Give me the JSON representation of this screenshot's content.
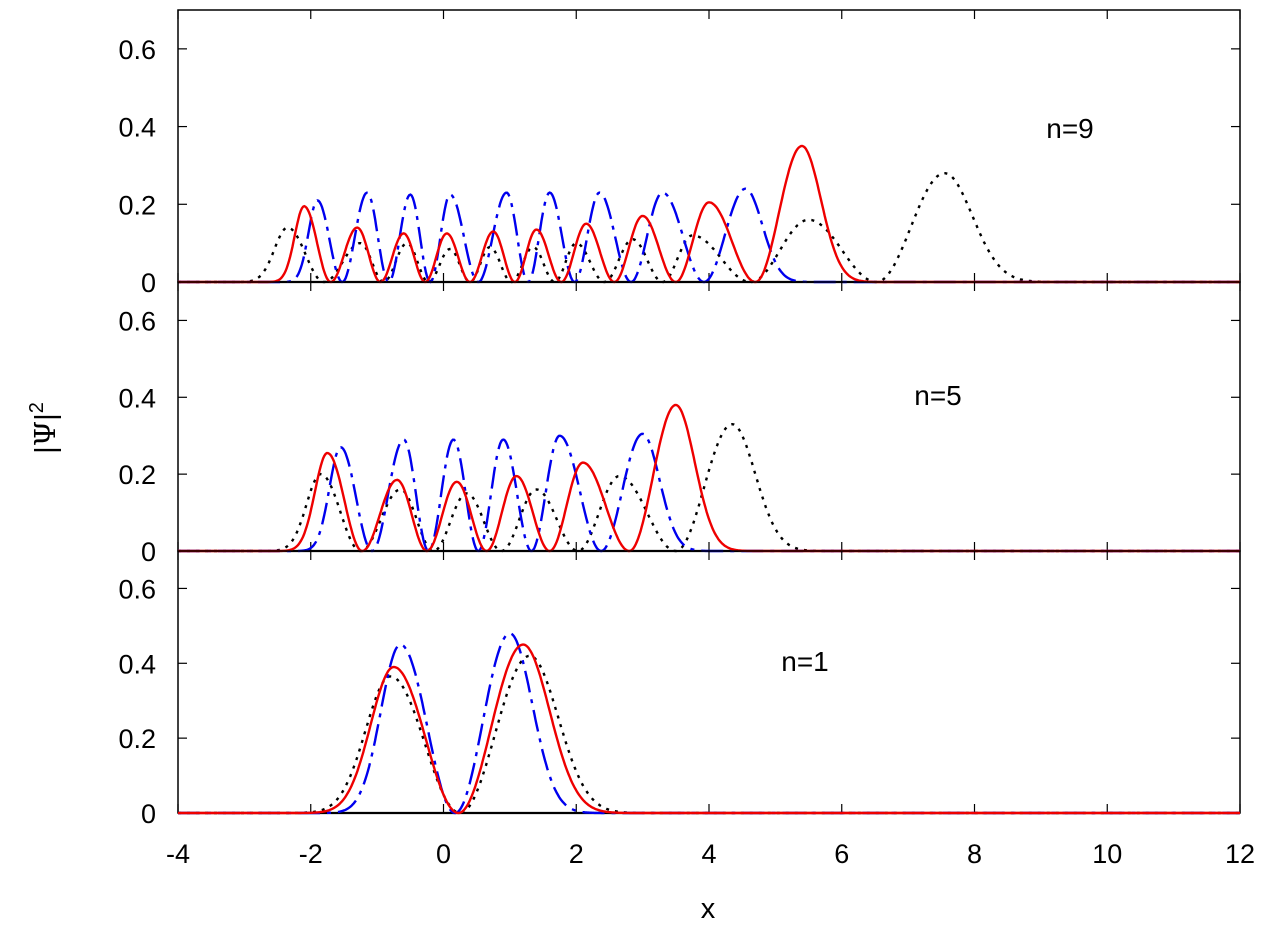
{
  "chart_data": {
    "type": "line",
    "xlabel": "x",
    "ylabel": {
      "prefix": "|",
      "symbol": "Ψ",
      "suffix": "|",
      "exponent": "2"
    },
    "xlim": [
      -4,
      12
    ],
    "x_ticks": [
      "-4",
      "-2",
      "0",
      "2",
      "4",
      "6",
      "8",
      "10",
      "12"
    ],
    "y_ticks": [
      "0",
      "0.2",
      "0.4",
      "0.6"
    ],
    "ylim": [
      0,
      0.7
    ],
    "colors": {
      "dotted": "#000000",
      "dashdot": "#0000ee",
      "solid": "#ee0000"
    },
    "panels": [
      {
        "label": "n=9",
        "series": [
          {
            "style": "dotted",
            "peaks": [
              {
                "x": -2.35,
                "h": 0.14
              },
              {
                "x": -1.25,
                "h": 0.1
              },
              {
                "x": -0.55,
                "h": 0.1
              },
              {
                "x": 0.1,
                "h": 0.085
              },
              {
                "x": 0.7,
                "h": 0.09
              },
              {
                "x": 1.35,
                "h": 0.09
              },
              {
                "x": 2.0,
                "h": 0.1
              },
              {
                "x": 2.85,
                "h": 0.11
              },
              {
                "x": 3.75,
                "h": 0.12
              },
              {
                "x": 5.5,
                "h": 0.16
              },
              {
                "x": 7.55,
                "h": 0.28
              }
            ]
          },
          {
            "style": "dashdot",
            "peaks": [
              {
                "x": -1.9,
                "h": 0.21
              },
              {
                "x": -1.15,
                "h": 0.23
              },
              {
                "x": -0.5,
                "h": 0.225
              },
              {
                "x": 0.1,
                "h": 0.225
              },
              {
                "x": 0.95,
                "h": 0.23
              },
              {
                "x": 1.6,
                "h": 0.23
              },
              {
                "x": 2.35,
                "h": 0.23
              },
              {
                "x": 3.3,
                "h": 0.23
              },
              {
                "x": 4.55,
                "h": 0.24
              }
            ]
          },
          {
            "style": "solid",
            "peaks": [
              {
                "x": -2.1,
                "h": 0.195
              },
              {
                "x": -1.3,
                "h": 0.14
              },
              {
                "x": -0.6,
                "h": 0.125
              },
              {
                "x": 0.05,
                "h": 0.125
              },
              {
                "x": 0.75,
                "h": 0.13
              },
              {
                "x": 1.4,
                "h": 0.135
              },
              {
                "x": 2.15,
                "h": 0.15
              },
              {
                "x": 3.0,
                "h": 0.17
              },
              {
                "x": 4.0,
                "h": 0.205
              },
              {
                "x": 5.4,
                "h": 0.35
              }
            ]
          }
        ]
      },
      {
        "label": "n=5",
        "series": [
          {
            "style": "dotted",
            "peaks": [
              {
                "x": -1.85,
                "h": 0.2
              },
              {
                "x": -0.65,
                "h": 0.16
              },
              {
                "x": 0.35,
                "h": 0.15
              },
              {
                "x": 1.4,
                "h": 0.16
              },
              {
                "x": 2.65,
                "h": 0.195
              },
              {
                "x": 4.35,
                "h": 0.33
              }
            ]
          },
          {
            "style": "dashdot",
            "peaks": [
              {
                "x": -1.55,
                "h": 0.27
              },
              {
                "x": -0.6,
                "h": 0.29
              },
              {
                "x": 0.15,
                "h": 0.29
              },
              {
                "x": 0.9,
                "h": 0.29
              },
              {
                "x": 1.75,
                "h": 0.3
              },
              {
                "x": 3.0,
                "h": 0.305
              }
            ]
          },
          {
            "style": "solid",
            "peaks": [
              {
                "x": -1.75,
                "h": 0.255
              },
              {
                "x": -0.7,
                "h": 0.185
              },
              {
                "x": 0.2,
                "h": 0.18
              },
              {
                "x": 1.1,
                "h": 0.195
              },
              {
                "x": 2.1,
                "h": 0.23
              },
              {
                "x": 3.5,
                "h": 0.38
              }
            ]
          }
        ]
      },
      {
        "label": "n=1",
        "series": [
          {
            "style": "dotted",
            "peaks": [
              {
                "x": -0.8,
                "h": 0.365
              },
              {
                "x": 1.3,
                "h": 0.42
              }
            ]
          },
          {
            "style": "dashdot",
            "peaks": [
              {
                "x": -0.65,
                "h": 0.45
              },
              {
                "x": 1.0,
                "h": 0.48
              }
            ]
          },
          {
            "style": "solid",
            "peaks": [
              {
                "x": -0.75,
                "h": 0.39
              },
              {
                "x": 1.2,
                "h": 0.45
              }
            ]
          }
        ]
      }
    ]
  }
}
